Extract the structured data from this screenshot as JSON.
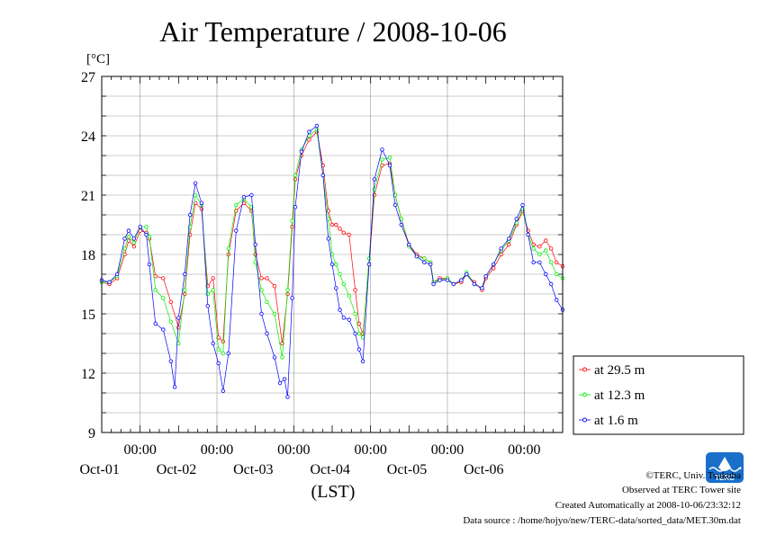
{
  "chart_data": {
    "type": "line",
    "title": "Air Temperature / 2008-10-06",
    "ylabel": "[°C]",
    "xlabel": "(LST)",
    "ylim": [
      9,
      27
    ],
    "yticks": [
      9,
      12,
      15,
      18,
      21,
      24,
      27
    ],
    "xlim": [
      0,
      6
    ],
    "x_unit": "days from 2008-09-30 12:00 LST",
    "x_time_label": "00:00",
    "x_ticks": [
      {
        "x": 0.5,
        "date": "Oct-01"
      },
      {
        "x": 1.5,
        "date": "Oct-02"
      },
      {
        "x": 2.5,
        "date": "Oct-03"
      },
      {
        "x": 3.5,
        "date": "Oct-04"
      },
      {
        "x": 4.5,
        "date": "Oct-05"
      },
      {
        "x": 5.5,
        "date": "Oct-06"
      }
    ],
    "grid": true,
    "legend_position": "right-bottom",
    "series": [
      {
        "name": "at 29.5 m",
        "color": "#ff0000",
        "x": [
          0,
          0.1,
          0.2,
          0.3,
          0.35,
          0.42,
          0.5,
          0.58,
          0.62,
          0.7,
          0.8,
          0.9,
          1.0,
          1.08,
          1.15,
          1.22,
          1.3,
          1.38,
          1.45,
          1.52,
          1.58,
          1.65,
          1.75,
          1.85,
          1.95,
          2.0,
          2.08,
          2.15,
          2.25,
          2.35,
          2.42,
          2.48,
          2.52,
          2.6,
          2.7,
          2.8,
          2.88,
          2.95,
          3.0,
          3.05,
          3.1,
          3.15,
          3.22,
          3.3,
          3.35,
          3.4,
          3.48,
          3.55,
          3.65,
          3.75,
          3.82,
          3.9,
          4.0,
          4.1,
          4.2,
          4.28,
          4.32,
          4.4,
          4.5,
          4.58,
          4.68,
          4.75,
          4.85,
          4.95,
          5.0,
          5.1,
          5.2,
          5.3,
          5.4,
          5.48,
          5.55,
          5.62,
          5.7,
          5.78,
          5.85,
          5.92,
          6.0
        ],
        "values": [
          16.6,
          16.5,
          16.8,
          18.0,
          18.7,
          18.4,
          19.2,
          19.1,
          18.8,
          16.9,
          16.8,
          15.6,
          14.3,
          16.0,
          19.0,
          20.6,
          20.3,
          16.4,
          16.8,
          13.8,
          13.6,
          18.0,
          20.2,
          20.6,
          20.2,
          18.0,
          16.8,
          16.8,
          16.4,
          13.5,
          16.0,
          19.4,
          21.8,
          23.0,
          23.8,
          24.2,
          22.5,
          20.2,
          19.5,
          19.5,
          19.3,
          19.1,
          19.0,
          16.2,
          14.5,
          14.0,
          17.5,
          21.0,
          22.5,
          22.6,
          21.0,
          19.8,
          18.5,
          18.0,
          17.8,
          17.6,
          16.6,
          16.8,
          16.8,
          16.5,
          16.6,
          17.0,
          16.6,
          16.2,
          16.8,
          17.3,
          18.0,
          18.5,
          19.5,
          20.2,
          19.2,
          18.5,
          18.4,
          18.7,
          18.3,
          17.6,
          17.4
        ]
      },
      {
        "name": "at 12.3 m",
        "color": "#00ee00",
        "x": [
          0,
          0.1,
          0.2,
          0.3,
          0.35,
          0.42,
          0.5,
          0.58,
          0.62,
          0.7,
          0.8,
          0.9,
          1.0,
          1.08,
          1.15,
          1.22,
          1.3,
          1.38,
          1.45,
          1.52,
          1.58,
          1.65,
          1.75,
          1.85,
          1.95,
          2.0,
          2.08,
          2.15,
          2.25,
          2.35,
          2.42,
          2.48,
          2.52,
          2.6,
          2.7,
          2.8,
          2.88,
          2.95,
          3.0,
          3.05,
          3.1,
          3.15,
          3.22,
          3.3,
          3.35,
          3.4,
          3.48,
          3.55,
          3.65,
          3.75,
          3.82,
          3.9,
          4.0,
          4.1,
          4.2,
          4.28,
          4.32,
          4.4,
          4.5,
          4.58,
          4.68,
          4.75,
          4.85,
          4.95,
          5.0,
          5.1,
          5.2,
          5.3,
          5.4,
          5.48,
          5.55,
          5.62,
          5.7,
          5.78,
          5.85,
          5.92,
          6.0
        ],
        "values": [
          16.6,
          16.6,
          16.9,
          18.3,
          18.9,
          18.6,
          19.4,
          19.4,
          18.9,
          16.2,
          15.8,
          14.6,
          13.5,
          16.2,
          19.4,
          21.0,
          20.5,
          16.0,
          16.2,
          13.2,
          13.0,
          18.3,
          20.5,
          20.8,
          20.4,
          17.6,
          16.2,
          15.6,
          15.0,
          12.8,
          16.2,
          19.7,
          22.0,
          23.3,
          24.0,
          24.3,
          22.0,
          19.8,
          18.0,
          17.5,
          17.0,
          16.5,
          15.9,
          15.0,
          14.0,
          13.8,
          17.8,
          21.3,
          22.8,
          22.9,
          21.0,
          19.8,
          18.4,
          17.9,
          17.8,
          17.6,
          16.6,
          16.7,
          16.8,
          16.5,
          16.7,
          17.1,
          16.5,
          16.3,
          16.9,
          17.5,
          18.2,
          18.7,
          19.6,
          20.3,
          19.0,
          18.3,
          18.0,
          18.2,
          17.6,
          17.0,
          16.8
        ]
      },
      {
        "name": "at 1.6 m",
        "color": "#0000ff",
        "x": [
          0,
          0.1,
          0.2,
          0.3,
          0.35,
          0.42,
          0.5,
          0.58,
          0.62,
          0.7,
          0.8,
          0.9,
          0.95,
          1.0,
          1.08,
          1.15,
          1.22,
          1.3,
          1.38,
          1.45,
          1.52,
          1.58,
          1.65,
          1.75,
          1.85,
          1.95,
          2.0,
          2.08,
          2.15,
          2.25,
          2.32,
          2.38,
          2.42,
          2.48,
          2.52,
          2.6,
          2.7,
          2.8,
          2.88,
          2.95,
          3.0,
          3.05,
          3.1,
          3.15,
          3.22,
          3.3,
          3.35,
          3.4,
          3.48,
          3.55,
          3.65,
          3.75,
          3.82,
          3.9,
          4.0,
          4.1,
          4.2,
          4.28,
          4.32,
          4.4,
          4.5,
          4.58,
          4.68,
          4.75,
          4.85,
          4.95,
          5.0,
          5.1,
          5.2,
          5.3,
          5.4,
          5.48,
          5.55,
          5.62,
          5.7,
          5.78,
          5.85,
          5.92,
          6.0
        ],
        "values": [
          16.7,
          16.6,
          17.0,
          18.8,
          19.2,
          18.8,
          19.4,
          19.0,
          17.5,
          14.5,
          14.2,
          12.6,
          11.3,
          14.8,
          17.0,
          20.0,
          21.6,
          20.6,
          15.4,
          13.5,
          12.5,
          11.1,
          13.0,
          19.2,
          20.9,
          21.0,
          18.5,
          15.0,
          14.0,
          12.8,
          11.5,
          11.7,
          10.8,
          15.8,
          20.4,
          23.2,
          24.2,
          24.5,
          22.0,
          18.8,
          17.5,
          16.3,
          15.2,
          14.8,
          14.7,
          14.0,
          13.2,
          12.6,
          17.5,
          21.8,
          23.3,
          22.5,
          20.5,
          19.5,
          18.5,
          17.9,
          17.6,
          17.5,
          16.5,
          16.7,
          16.7,
          16.5,
          16.7,
          17.0,
          16.5,
          16.3,
          16.9,
          17.5,
          18.3,
          18.8,
          19.8,
          20.5,
          19.0,
          17.6,
          17.6,
          17.0,
          16.5,
          15.7,
          15.2
        ]
      }
    ]
  },
  "footer": {
    "copyright": "©TERC, Univ. Tsukuba",
    "observed": "Observed at TERC Tower site",
    "created": "Created Automatically at 2008-10-06/23:32:12",
    "source": "Data source : /home/hojyo/new/TERC-data/sorted_data/MET.30m.dat"
  },
  "logo": {
    "text": "TERC"
  }
}
